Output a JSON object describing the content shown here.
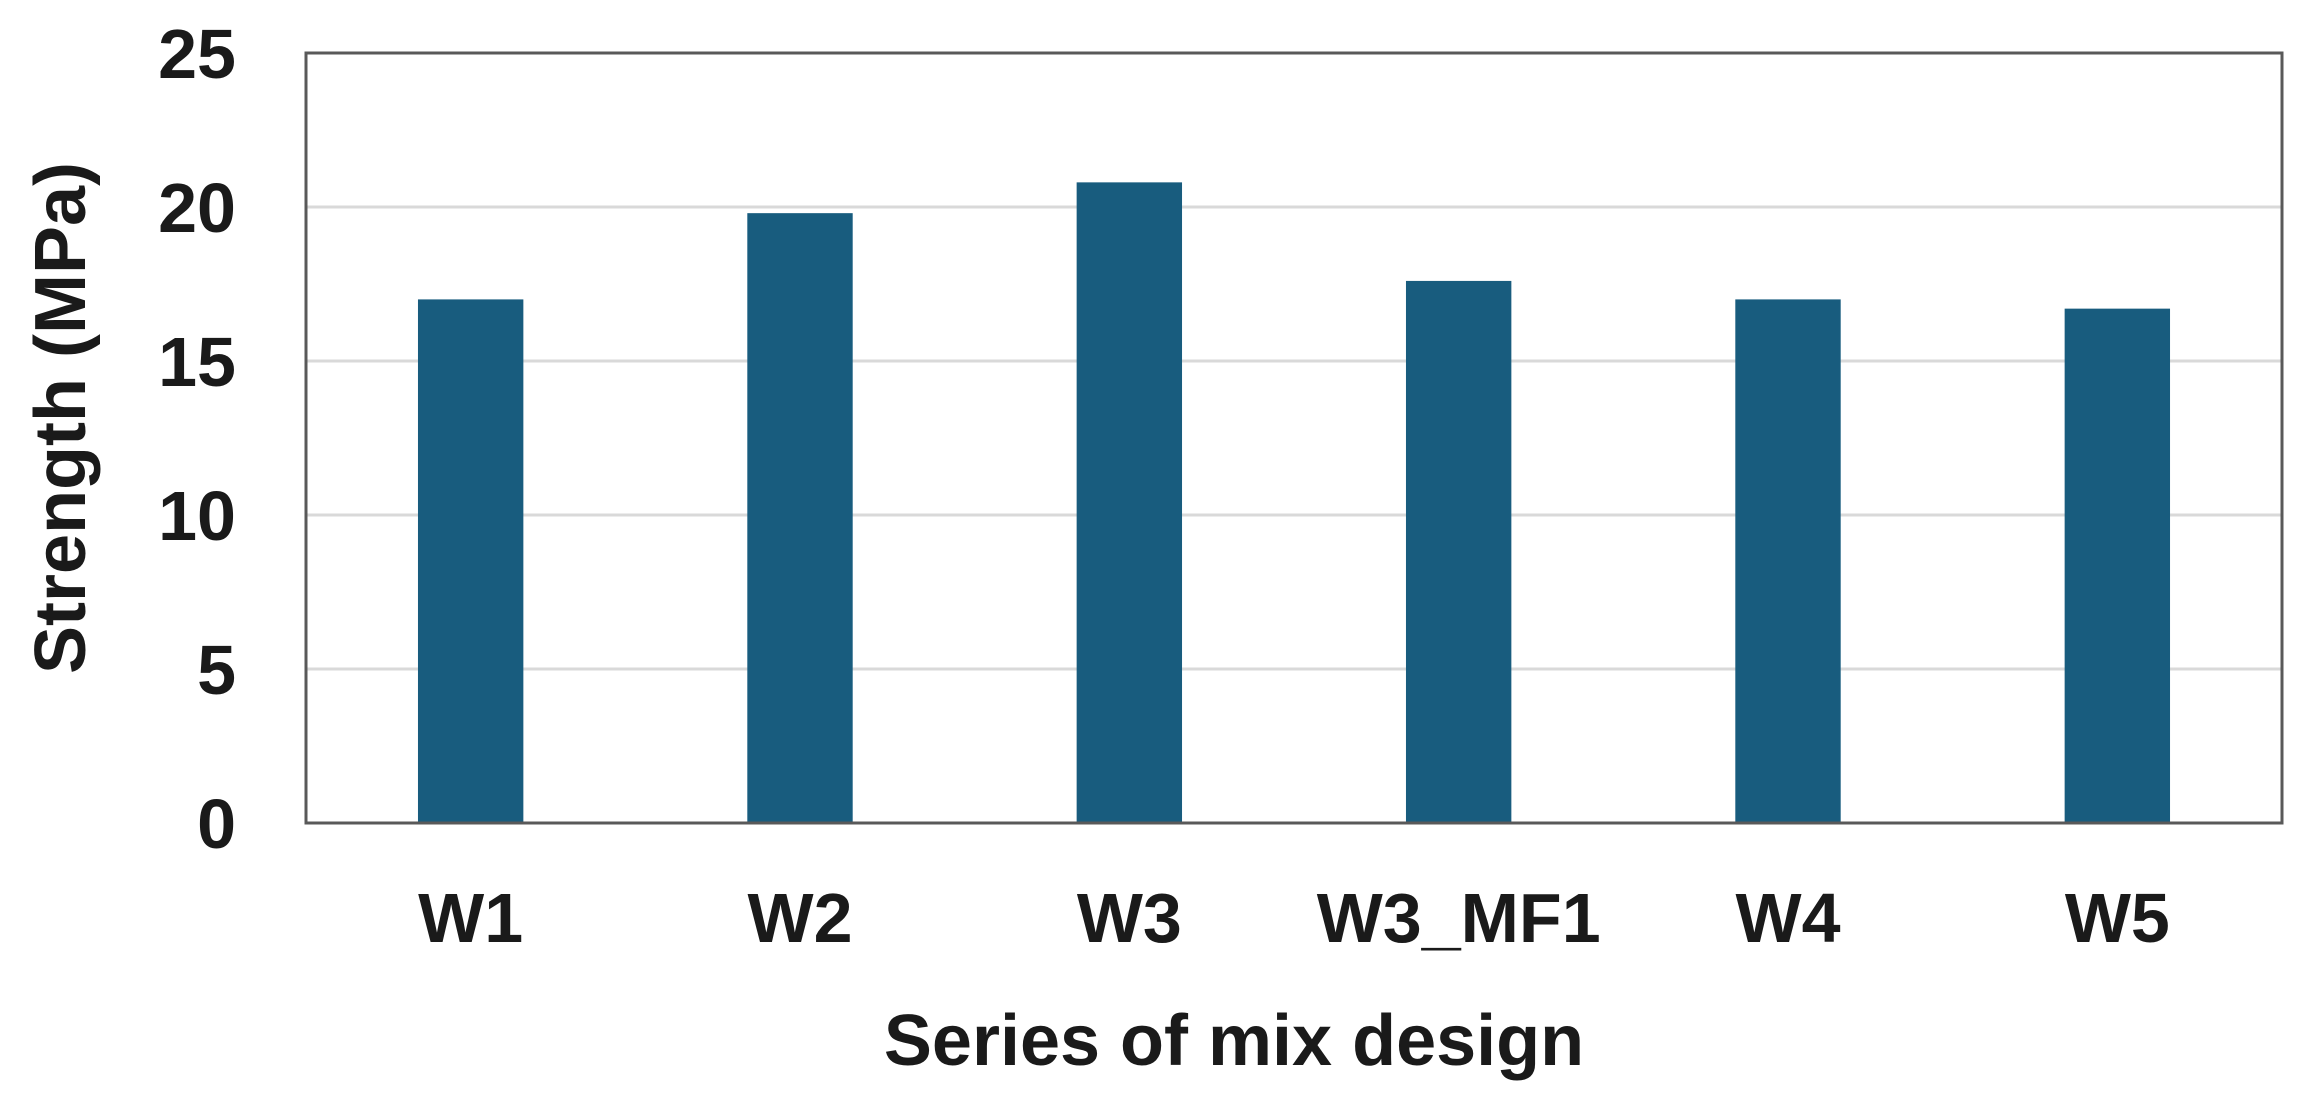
{
  "chart_data": {
    "type": "bar",
    "categories": [
      "W1",
      "W2",
      "W3",
      "W3_MF1",
      "W4",
      "W5"
    ],
    "values": [
      17.0,
      19.8,
      20.8,
      17.6,
      17.0,
      16.7
    ],
    "title": "",
    "xlabel": "Series of mix design",
    "ylabel": "Strength (MPa)",
    "ylim": [
      0,
      25
    ],
    "yticks": [
      0,
      5,
      10,
      15,
      20,
      25
    ],
    "grid": true,
    "legend": "none",
    "colors": {
      "bar": "#185c7e",
      "grid": "#d9d9d9",
      "frame": "#595959"
    }
  }
}
